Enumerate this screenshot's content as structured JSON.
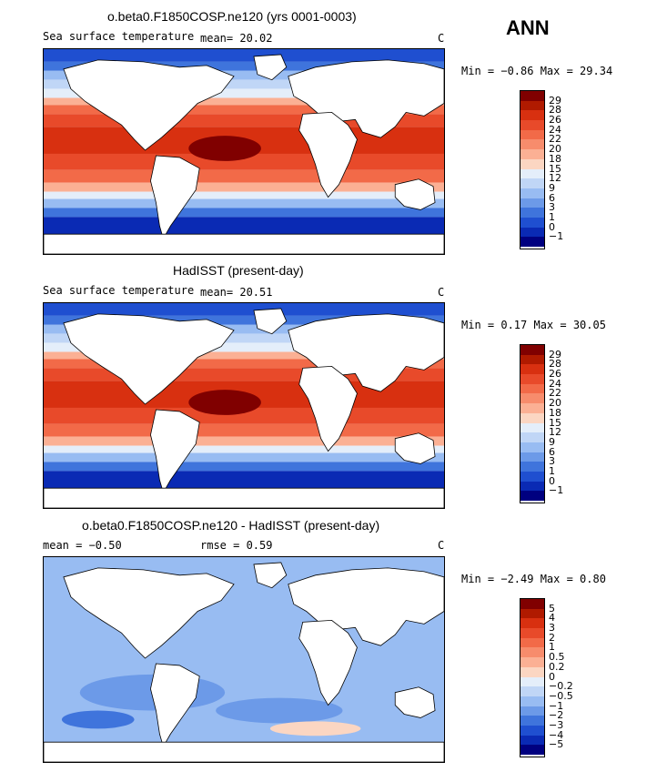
{
  "season": "ANN",
  "panels": [
    {
      "title": "o.beta0.F1850COSP.ne120 (yrs 0001-0003)",
      "left_label": "Sea surface temperature",
      "mean_text": "mean=  20.02",
      "rmse_text": "",
      "units": "C",
      "minmax": "Min =  −0.86 Max =  29.34",
      "levels": [
        "29",
        "28",
        "26",
        "24",
        "22",
        "20",
        "18",
        "15",
        "12",
        "9",
        "6",
        "3",
        "1",
        "0",
        "−1"
      ],
      "colors": [
        "#800000",
        "#b01a00",
        "#d83010",
        "#e84a2a",
        "#f26a48",
        "#f78c6c",
        "#fbb094",
        "#fbd6c2",
        "#e4eefa",
        "#c0d6f6",
        "#98bcf2",
        "#6c9ae8",
        "#3f74dc",
        "#1f4fd0",
        "#0a2ab4",
        "#000080"
      ]
    },
    {
      "title": "HadISST (present-day)",
      "left_label": "Sea surface temperature",
      "mean_text": "mean=  20.51",
      "rmse_text": "",
      "units": "C",
      "minmax": "Min =   0.17 Max =  30.05",
      "levels": [
        "29",
        "28",
        "26",
        "24",
        "22",
        "20",
        "18",
        "15",
        "12",
        "9",
        "6",
        "3",
        "1",
        "0",
        "−1"
      ],
      "colors": [
        "#800000",
        "#b01a00",
        "#d83010",
        "#e84a2a",
        "#f26a48",
        "#f78c6c",
        "#fbb094",
        "#fbd6c2",
        "#e4eefa",
        "#c0d6f6",
        "#98bcf2",
        "#6c9ae8",
        "#3f74dc",
        "#1f4fd0",
        "#0a2ab4",
        "#000080"
      ]
    },
    {
      "title": "o.beta0.F1850COSP.ne120 - HadISST (present-day)",
      "left_label": "",
      "mean_text": "mean =  −0.50",
      "rmse_text": "rmse =   0.59",
      "units": "C",
      "minmax": "Min =  −2.49 Max =   0.80",
      "levels": [
        "5",
        "4",
        "3",
        "2",
        "1",
        "0.5",
        "0.2",
        "0",
        "−0.2",
        "−0.5",
        "−1",
        "−2",
        "−3",
        "−4",
        "−5"
      ],
      "colors": [
        "#800000",
        "#b01a00",
        "#d83010",
        "#e84a2a",
        "#f26a48",
        "#f78c6c",
        "#fbb094",
        "#fbd6c2",
        "#e4eefa",
        "#c0d6f6",
        "#98bcf2",
        "#6c9ae8",
        "#3f74dc",
        "#1f4fd0",
        "#0a2ab4",
        "#000080"
      ]
    }
  ]
}
